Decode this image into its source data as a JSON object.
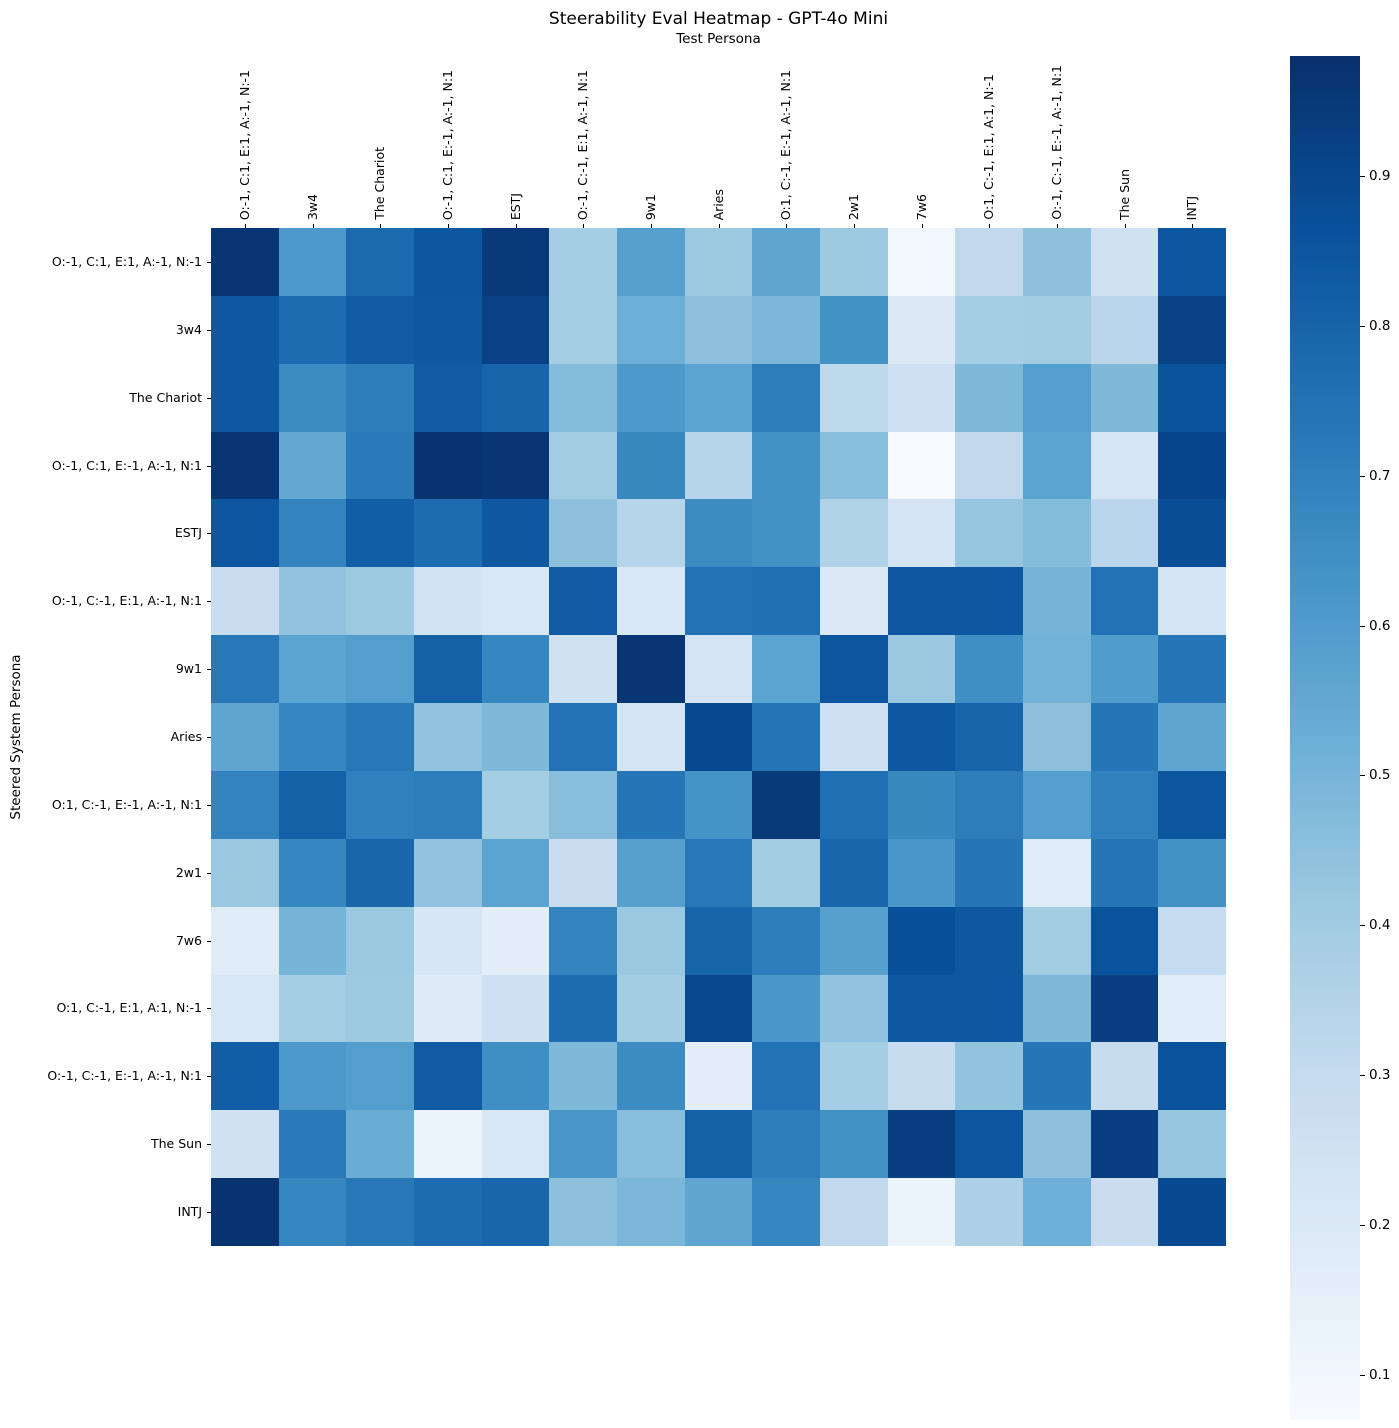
{
  "figure": {
    "title": "Steerability Eval Heatmap - GPT-4o Mini",
    "x_axis_title": "Test Persona",
    "y_axis_title": "Steered System Persona"
  },
  "colorbar": {
    "tick_labels": [
      "0.9",
      "0.8",
      "0.7",
      "0.6",
      "0.5",
      "0.4",
      "0.3",
      "0.2",
      "0.1"
    ]
  },
  "chart_data": {
    "type": "heatmap",
    "title": "Steerability Eval Heatmap - GPT-4o Mini",
    "xlabel": "Test Persona",
    "ylabel": "Steered System Persona",
    "colormap": "Blues",
    "vmin": 0.07,
    "vmax": 0.98,
    "legend_position": "right-colorbar",
    "grid": false,
    "colorbar_ticks": [
      0.9,
      0.8,
      0.7,
      0.6,
      0.5,
      0.4,
      0.3,
      0.2,
      0.1
    ],
    "x_labels": [
      "O:-1, C:1, E:1, A:-1, N:-1",
      "3w4",
      "The Chariot",
      "O:-1, C:1, E:-1, A:-1, N:1",
      "ESTJ",
      "O:-1, C:-1, E:1, A:-1, N:1",
      "9w1",
      "Aries",
      "O:1, C:-1, E:-1, A:-1, N:1",
      "2w1",
      "7w6",
      "O:1, C:-1, E:1, A:1, N:-1",
      "O:-1, C:-1, E:-1, A:-1, N:1",
      "The Sun",
      "INTJ"
    ],
    "y_labels": [
      "O:-1, C:1, E:1, A:-1, N:-1",
      "3w4",
      "The Chariot",
      "O:-1, C:1, E:-1, A:-1, N:1",
      "ESTJ",
      "O:-1, C:-1, E:1, A:-1, N:1",
      "9w1",
      "Aries",
      "O:1, C:-1, E:-1, A:-1, N:1",
      "2w1",
      "7w6",
      "O:1, C:-1, E:1, A:1, N:-1",
      "O:-1, C:-1, E:-1, A:-1, N:1",
      "The Sun",
      "INTJ"
    ],
    "values": [
      [
        0.96,
        0.61,
        0.78,
        0.85,
        0.95,
        0.39,
        0.58,
        0.41,
        0.56,
        0.41,
        0.1,
        0.31,
        0.45,
        0.25,
        0.85
      ],
      [
        0.84,
        0.77,
        0.83,
        0.84,
        0.92,
        0.39,
        0.52,
        0.45,
        0.49,
        0.64,
        0.2,
        0.39,
        0.4,
        0.33,
        0.92
      ],
      [
        0.84,
        0.66,
        0.71,
        0.83,
        0.8,
        0.47,
        0.61,
        0.57,
        0.71,
        0.32,
        0.26,
        0.48,
        0.59,
        0.48,
        0.86
      ],
      [
        0.96,
        0.55,
        0.72,
        0.97,
        0.96,
        0.4,
        0.67,
        0.34,
        0.64,
        0.46,
        0.08,
        0.31,
        0.57,
        0.22,
        0.91
      ],
      [
        0.85,
        0.69,
        0.82,
        0.77,
        0.84,
        0.45,
        0.34,
        0.66,
        0.64,
        0.36,
        0.23,
        0.43,
        0.47,
        0.33,
        0.88
      ],
      [
        0.28,
        0.44,
        0.41,
        0.24,
        0.21,
        0.83,
        0.21,
        0.75,
        0.76,
        0.2,
        0.84,
        0.84,
        0.5,
        0.75,
        0.23
      ],
      [
        0.73,
        0.57,
        0.59,
        0.81,
        0.68,
        0.25,
        0.96,
        0.23,
        0.57,
        0.85,
        0.42,
        0.65,
        0.51,
        0.6,
        0.74
      ],
      [
        0.56,
        0.68,
        0.73,
        0.44,
        0.48,
        0.75,
        0.23,
        0.89,
        0.74,
        0.26,
        0.84,
        0.8,
        0.45,
        0.74,
        0.56
      ],
      [
        0.69,
        0.81,
        0.7,
        0.71,
        0.39,
        0.46,
        0.74,
        0.63,
        0.95,
        0.76,
        0.67,
        0.71,
        0.59,
        0.7,
        0.85
      ],
      [
        0.42,
        0.68,
        0.79,
        0.44,
        0.57,
        0.28,
        0.58,
        0.73,
        0.4,
        0.79,
        0.62,
        0.74,
        0.18,
        0.74,
        0.64
      ],
      [
        0.18,
        0.5,
        0.42,
        0.22,
        0.16,
        0.69,
        0.42,
        0.8,
        0.71,
        0.58,
        0.87,
        0.84,
        0.4,
        0.86,
        0.3
      ],
      [
        0.21,
        0.39,
        0.41,
        0.19,
        0.26,
        0.77,
        0.4,
        0.9,
        0.62,
        0.44,
        0.84,
        0.84,
        0.48,
        0.93,
        0.17
      ],
      [
        0.82,
        0.61,
        0.59,
        0.83,
        0.65,
        0.48,
        0.66,
        0.16,
        0.75,
        0.39,
        0.29,
        0.44,
        0.74,
        0.29,
        0.86
      ],
      [
        0.25,
        0.72,
        0.53,
        0.12,
        0.21,
        0.62,
        0.46,
        0.81,
        0.71,
        0.64,
        0.93,
        0.85,
        0.45,
        0.93,
        0.43
      ],
      [
        0.97,
        0.68,
        0.73,
        0.77,
        0.79,
        0.45,
        0.49,
        0.56,
        0.68,
        0.31,
        0.12,
        0.37,
        0.52,
        0.28,
        0.89
      ]
    ]
  }
}
